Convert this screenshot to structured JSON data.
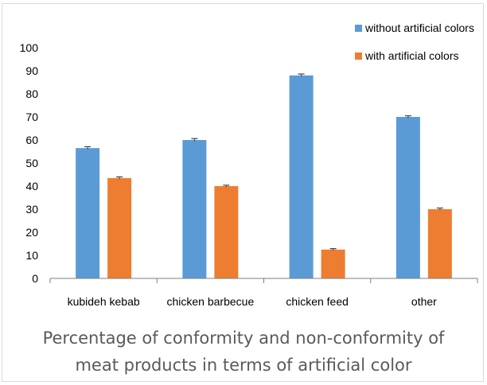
{
  "chart_data": {
    "type": "bar",
    "categories": [
      "kubideh kebab",
      "chicken barbecue",
      "chicken feed",
      "other"
    ],
    "series": [
      {
        "name": "without artificial colors",
        "values": [
          56.5,
          60,
          88,
          70
        ],
        "errors": [
          0.6,
          0.6,
          0.6,
          0.5
        ],
        "color": "#5b9bd5"
      },
      {
        "name": "with artificial colors",
        "values": [
          43.5,
          40,
          12.5,
          30
        ],
        "errors": [
          0.5,
          0.4,
          0.4,
          0.5
        ],
        "color": "#ed7d31"
      }
    ],
    "ylim": [
      0,
      100
    ],
    "yticks": [
      "0",
      "10",
      "20",
      "30",
      "40",
      "50",
      "60",
      "70",
      "80",
      "90",
      "100"
    ],
    "grid": false,
    "legend_position": "top-right",
    "title": "",
    "xlabel": "",
    "ylabel": ""
  },
  "caption": {
    "line1": "Percentage of conformity and non-conformity of",
    "line2": "meat products in terms of artificial color"
  }
}
